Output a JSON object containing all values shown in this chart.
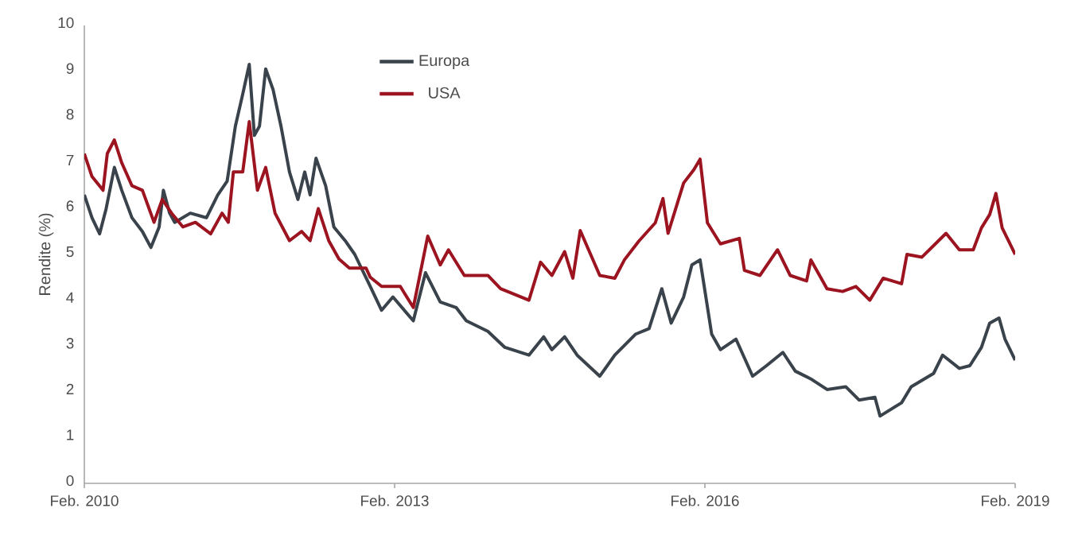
{
  "chart_data": {
    "type": "line",
    "ylabel": "Rendite (%)",
    "xlim": [
      "2010-02-01",
      "2019-02-01"
    ],
    "xticks": [
      {
        "value": "2010-02-01",
        "label": "Feb. 2010"
      },
      {
        "value": "2013-02-01",
        "label": "Feb. 2013"
      },
      {
        "value": "2016-02-01",
        "label": "Feb. 2016"
      },
      {
        "value": "2019-02-01",
        "label": "Feb. 2019"
      }
    ],
    "ylim": [
      0,
      10
    ],
    "yticks": [
      0,
      1,
      2,
      3,
      4,
      5,
      6,
      7,
      8,
      9,
      10
    ],
    "grid": false,
    "legend": "top",
    "marker": "none",
    "line_style": "solid",
    "series": [
      {
        "name": "Europa",
        "color": "#3a434b",
        "x": [
          "2010-02-01",
          "2010-02-28",
          "2010-03-27",
          "2010-04-19",
          "2010-05-18",
          "2010-06-13",
          "2010-07-19",
          "2010-08-25",
          "2010-09-24",
          "2010-10-23",
          "2010-11-07",
          "2010-11-29",
          "2010-12-17",
          "2011-02-10",
          "2011-04-08",
          "2011-05-18",
          "2011-06-20",
          "2011-07-19",
          "2011-08-14",
          "2011-09-06",
          "2011-09-24",
          "2011-10-12",
          "2011-11-03",
          "2011-11-29",
          "2011-12-27",
          "2012-01-26",
          "2012-02-25",
          "2012-03-20",
          "2012-04-08",
          "2012-04-29",
          "2012-06-02",
          "2012-07-01",
          "2012-08-10",
          "2012-09-13",
          "2012-11-07",
          "2012-12-17",
          "2013-01-26",
          "2013-04-08",
          "2013-05-21",
          "2013-07-12",
          "2013-09-06",
          "2013-10-12",
          "2013-12-27",
          "2014-02-25",
          "2014-05-21",
          "2014-07-12",
          "2014-08-10",
          "2014-09-24",
          "2014-11-07",
          "2015-01-26",
          "2015-03-20",
          "2015-06-02",
          "2015-07-19",
          "2015-09-02",
          "2015-10-05",
          "2015-11-18",
          "2015-12-17",
          "2016-01-15",
          "2016-02-25",
          "2016-03-27",
          "2016-05-21",
          "2016-07-19",
          "2016-09-06",
          "2016-11-03",
          "2016-12-17",
          "2017-02-10",
          "2017-04-08",
          "2017-06-13",
          "2017-07-30",
          "2017-09-24",
          "2017-10-12",
          "2017-12-27",
          "2018-01-30",
          "2018-04-19",
          "2018-05-21",
          "2018-07-19",
          "2018-08-25",
          "2018-10-05",
          "2018-11-03",
          "2018-12-06",
          "2018-12-27",
          "2019-02-01"
        ],
        "values": [
          6.3,
          5.8,
          5.45,
          6.0,
          6.9,
          6.4,
          5.8,
          5.5,
          5.15,
          5.6,
          6.4,
          5.9,
          5.7,
          5.9,
          5.8,
          6.3,
          6.6,
          7.8,
          8.5,
          9.15,
          7.6,
          7.8,
          9.05,
          8.6,
          7.8,
          6.8,
          6.2,
          6.8,
          6.3,
          7.1,
          6.5,
          5.6,
          5.3,
          5.0,
          4.3,
          3.78,
          4.07,
          3.55,
          4.6,
          3.96,
          3.84,
          3.55,
          3.32,
          2.97,
          2.8,
          3.2,
          2.92,
          3.2,
          2.8,
          2.34,
          2.8,
          3.26,
          3.38,
          4.25,
          3.5,
          4.07,
          4.77,
          4.88,
          3.26,
          2.92,
          3.15,
          2.34,
          2.57,
          2.86,
          2.45,
          2.28,
          2.05,
          2.11,
          1.82,
          1.88,
          1.47,
          1.76,
          2.11,
          2.4,
          2.8,
          2.51,
          2.57,
          2.97,
          3.5,
          3.61,
          3.15,
          2.69
        ]
      },
      {
        "name": "USA",
        "color": "#9b1420",
        "x": [
          "2010-02-01",
          "2010-02-28",
          "2010-04-08",
          "2010-04-23",
          "2010-05-18",
          "2010-06-13",
          "2010-07-19",
          "2010-08-25",
          "2010-10-05",
          "2010-11-03",
          "2010-12-06",
          "2011-01-15",
          "2011-02-28",
          "2011-04-23",
          "2011-06-02",
          "2011-06-24",
          "2011-07-12",
          "2011-08-14",
          "2011-09-06",
          "2011-10-05",
          "2011-11-03",
          "2011-12-06",
          "2012-01-26",
          "2012-03-09",
          "2012-04-08",
          "2012-05-07",
          "2012-06-13",
          "2012-07-19",
          "2012-08-25",
          "2012-10-23",
          "2012-11-07",
          "2012-12-17",
          "2013-02-21",
          "2013-04-08",
          "2013-05-29",
          "2013-07-12",
          "2013-08-10",
          "2013-10-05",
          "2013-12-27",
          "2014-02-10",
          "2014-05-21",
          "2014-07-01",
          "2014-08-10",
          "2014-09-24",
          "2014-10-23",
          "2014-11-18",
          "2015-01-26",
          "2015-03-20",
          "2015-04-23",
          "2015-06-13",
          "2015-08-10",
          "2015-09-06",
          "2015-09-24",
          "2015-11-18",
          "2015-12-24",
          "2016-01-15",
          "2016-02-10",
          "2016-03-27",
          "2016-06-02",
          "2016-06-20",
          "2016-08-14",
          "2016-10-15",
          "2016-11-29",
          "2017-01-26",
          "2017-02-10",
          "2017-04-08",
          "2017-06-02",
          "2017-07-19",
          "2017-09-06",
          "2017-10-23",
          "2017-12-27",
          "2018-01-15",
          "2018-03-09",
          "2018-06-02",
          "2018-07-19",
          "2018-09-06",
          "2018-10-05",
          "2018-11-03",
          "2018-11-25",
          "2018-12-17",
          "2019-02-01"
        ],
        "values": [
          7.2,
          6.7,
          6.4,
          7.2,
          7.5,
          7.0,
          6.5,
          6.4,
          5.7,
          6.2,
          5.9,
          5.6,
          5.7,
          5.45,
          5.9,
          5.7,
          6.8,
          6.8,
          7.9,
          6.4,
          6.9,
          5.9,
          5.3,
          5.5,
          5.3,
          6.0,
          5.3,
          4.9,
          4.7,
          4.7,
          4.5,
          4.3,
          4.3,
          3.84,
          5.4,
          4.77,
          5.1,
          4.54,
          4.54,
          4.25,
          4.0,
          4.83,
          4.54,
          5.06,
          4.48,
          5.52,
          4.54,
          4.48,
          4.88,
          5.29,
          5.69,
          6.22,
          5.46,
          6.56,
          6.85,
          7.08,
          5.69,
          5.23,
          5.35,
          4.65,
          4.54,
          5.1,
          4.54,
          4.42,
          4.88,
          4.25,
          4.19,
          4.3,
          4.0,
          4.48,
          4.36,
          5.0,
          4.94,
          5.46,
          5.1,
          5.1,
          5.58,
          5.87,
          6.33,
          5.58,
          5.0
        ]
      }
    ]
  }
}
